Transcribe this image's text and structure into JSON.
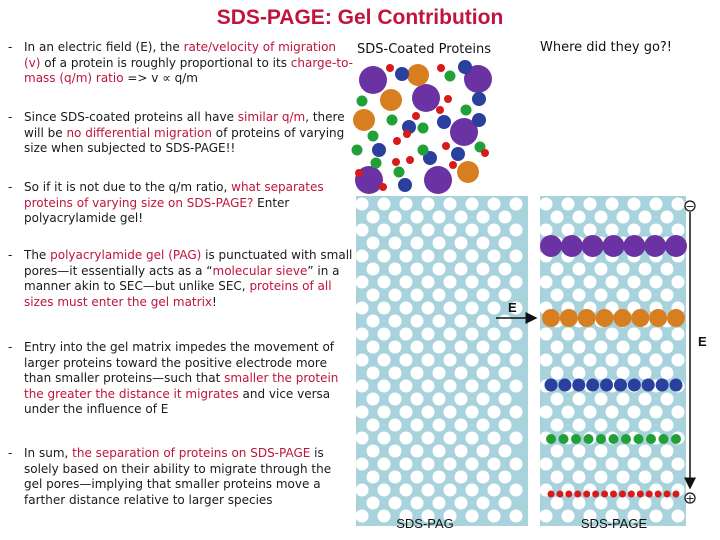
{
  "title": "SDS-PAGE: Gel Contribution",
  "bullets": [
    [
      [
        "In an electric field (E), the ",
        0
      ],
      [
        "rate/velocity of migration (v)",
        1
      ],
      [
        " of a protein is roughly proportional to its ",
        0
      ],
      [
        "charge-to-mass (q/m) ratio",
        1
      ],
      [
        " => v ∝ q/m",
        0
      ]
    ],
    [
      [
        "Since SDS-coated proteins all have ",
        0
      ],
      [
        "similar q/m",
        1
      ],
      [
        ", there will be ",
        0
      ],
      [
        "no differential migration",
        1
      ],
      [
        " of proteins of varying size when subjected to SDS-PAGE!!",
        0
      ]
    ],
    [
      [
        "So if it is not due to the q/m ratio, ",
        0
      ],
      [
        "what separates proteins of varying size on SDS-PAGE?",
        1
      ],
      [
        " Enter polyacrylamide gel!",
        0
      ]
    ],
    [
      [
        "The ",
        0
      ],
      [
        "polyacrylamide gel (PAG)",
        1
      ],
      [
        " is punctuated with small pores—it essentially acts as a “",
        0
      ],
      [
        "molecular sieve",
        1
      ],
      [
        "” in a manner akin to SEC—but unlike SEC, ",
        0
      ],
      [
        "proteins of all sizes must enter the gel matrix",
        1
      ],
      [
        "!",
        0
      ]
    ],
    [
      [
        "Entry into the gel matrix impedes the movement of larger proteins toward the positive electrode more than smaller proteins—such that ",
        0
      ],
      [
        "smaller the protein the greater the distance it migrates",
        1
      ],
      [
        " and vice versa under the influence of E",
        0
      ]
    ],
    [
      [
        "In sum, ",
        0
      ],
      [
        "the separation of proteins on SDS-PAGE",
        1
      ],
      [
        " is solely based on their ability to migrate through the gel pores—implying that smaller proteins move a farther distance relative to larger species",
        0
      ]
    ]
  ],
  "labels": {
    "coated": "SDS-Coated Proteins",
    "where": "Where did they go?!",
    "gel_left": "SDS-PAG",
    "gel_right": "SDS-PAGE",
    "e_left": "E",
    "e_right": "E",
    "minus": "−",
    "plus": "+"
  },
  "colors": {
    "accent": "#c0143c",
    "gel": "#a8d3dc",
    "purple": "#6b32a3",
    "orange": "#d77f20",
    "blue": "#2a3f9e",
    "green": "#22a038",
    "red": "#d81a1a"
  },
  "protein_sizes": {
    "purple": "largest",
    "orange": "large",
    "blue": "medium",
    "green": "small",
    "red": "smallest"
  }
}
